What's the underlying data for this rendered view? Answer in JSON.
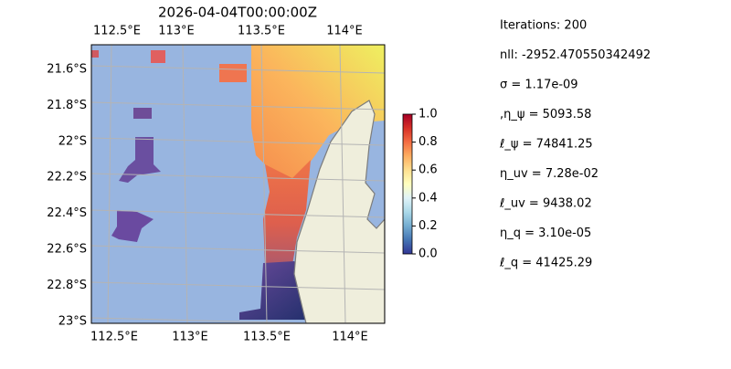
{
  "map": {
    "title": "2026-04-04T00:00:00Z",
    "lon_ticks_top": [
      "112.5°E",
      "113°E",
      "113.5°E",
      "114°E"
    ],
    "lon_ticks_bottom": [
      "112.5°E",
      "113°E",
      "113.5°E",
      "114°E"
    ],
    "lat_ticks": [
      "21.6°S",
      "21.8°S",
      "22°S",
      "22.2°S",
      "22.4°S",
      "22.6°S",
      "22.8°S",
      "23°S"
    ],
    "colorbar": {
      "lim": [
        0,
        1
      ],
      "ticks": [
        {
          "value": 0,
          "label": "0.0"
        },
        {
          "value": 0.2,
          "label": "0.2"
        },
        {
          "value": 0.4,
          "label": "0.4"
        },
        {
          "value": 0.6,
          "label": "0.6"
        },
        {
          "value": 0.8,
          "label": "0.8"
        },
        {
          "value": 1,
          "label": "1.0"
        }
      ]
    }
  },
  "info": [
    "Iterations: 200",
    "nll: -2952.470550342492",
    "σ = 1.17e-09",
    ",η_ψ = 5093.58",
    "ℓ_ψ = 74841.25",
    "η_uv = 7.28e-02",
    "ℓ_uv = 9438.02",
    "η_q = 3.10e-05",
    "ℓ_q = 41425.29"
  ]
}
